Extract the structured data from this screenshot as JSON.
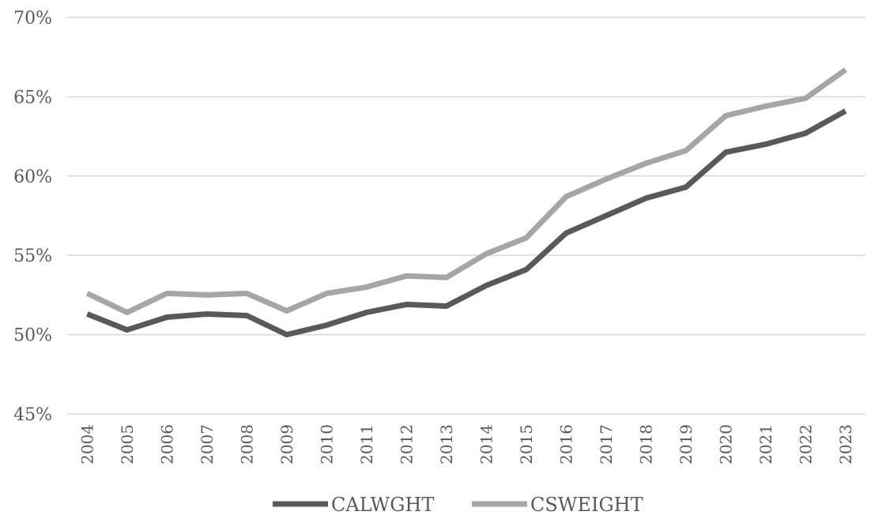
{
  "chart_data": {
    "type": "line",
    "title": "",
    "xlabel": "",
    "ylabel": "",
    "ylim": [
      45,
      70
    ],
    "y_ticks": [
      45,
      50,
      55,
      60,
      65,
      70
    ],
    "y_tick_labels": [
      "45%",
      "50%",
      "55%",
      "60%",
      "65%",
      "70%"
    ],
    "grid": true,
    "legend_position": "bottom",
    "categories": [
      "2004",
      "2005",
      "2006",
      "2007",
      "2008",
      "2009",
      "2010",
      "2011",
      "2012",
      "2013",
      "2014",
      "2015",
      "2016",
      "2017",
      "2018",
      "2019",
      "2020",
      "2021",
      "2022",
      "2023"
    ],
    "series": [
      {
        "name": "CALWGHT",
        "color": "#595959",
        "values": [
          51.3,
          50.3,
          51.1,
          51.3,
          51.2,
          50.0,
          50.6,
          51.4,
          51.9,
          51.8,
          53.1,
          54.1,
          56.4,
          57.5,
          58.6,
          59.3,
          61.5,
          62.0,
          62.7,
          64.1
        ]
      },
      {
        "name": "CSWEIGHT",
        "color": "#a6a6a6",
        "values": [
          52.6,
          51.4,
          52.6,
          52.5,
          52.6,
          51.5,
          52.6,
          53.0,
          53.7,
          53.6,
          55.1,
          56.1,
          58.7,
          59.8,
          60.8,
          61.6,
          63.8,
          64.4,
          64.9,
          66.7
        ]
      }
    ]
  }
}
